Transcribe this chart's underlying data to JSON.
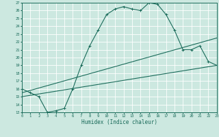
{
  "xlabel": "Humidex (Indice chaleur)",
  "ylabel": "",
  "xlim": [
    0,
    23
  ],
  "ylim": [
    13,
    27
  ],
  "yticks": [
    13,
    14,
    15,
    16,
    17,
    18,
    19,
    20,
    21,
    22,
    23,
    24,
    25,
    26,
    27
  ],
  "xticks": [
    0,
    1,
    2,
    3,
    4,
    5,
    6,
    7,
    8,
    9,
    10,
    11,
    12,
    13,
    14,
    15,
    16,
    17,
    18,
    19,
    20,
    21,
    22,
    23
  ],
  "bg_color": "#cce8e0",
  "line_color": "#1a6b5a",
  "grid_color": "#b0d8ce",
  "main_x": [
    0,
    1,
    2,
    3,
    4,
    5,
    6,
    7,
    8,
    9,
    10,
    11,
    12,
    13,
    14,
    15,
    16,
    17,
    18,
    19,
    20,
    21,
    22,
    23
  ],
  "main_y": [
    16.0,
    15.5,
    15.0,
    13.0,
    13.2,
    13.5,
    16.0,
    19.0,
    21.5,
    23.5,
    25.5,
    26.2,
    26.5,
    26.2,
    26.0,
    27.0,
    26.8,
    25.5,
    23.5,
    21.0,
    21.0,
    21.5,
    19.5,
    19.0
  ],
  "line1_x": [
    0,
    23
  ],
  "line1_y": [
    15.5,
    22.5
  ],
  "line2_x": [
    0,
    23
  ],
  "line2_y": [
    15.0,
    19.0
  ]
}
